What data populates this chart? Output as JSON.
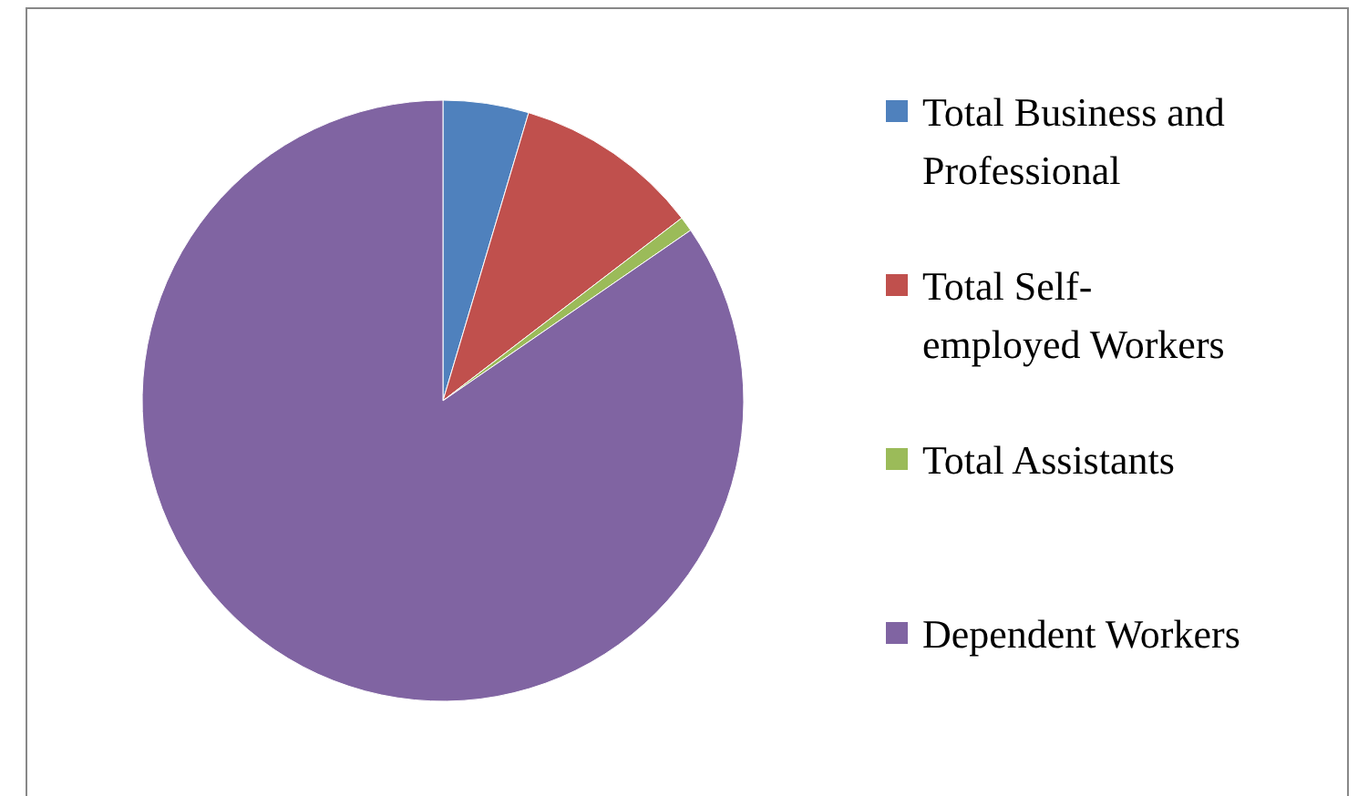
{
  "chart_data": {
    "type": "pie",
    "categories": [
      "Total Business and Professional",
      "Total Self-employed Workers",
      "Total Assistants",
      "Dependent Workers"
    ],
    "values": [
      4.6,
      10.0,
      0.8,
      84.6
    ],
    "colors": [
      "#4f81bd",
      "#c0504d",
      "#9bbb59",
      "#8064a2"
    ],
    "legend": "right"
  }
}
